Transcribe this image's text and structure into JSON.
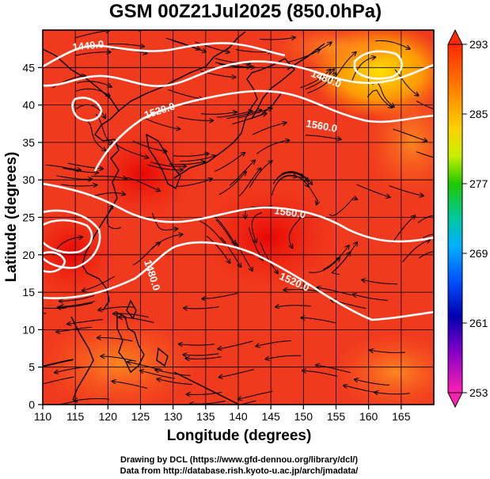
{
  "title": "GSM 00Z21Jul2025 (850.0hPa)",
  "x_axis": {
    "label": "Longitude (degrees)",
    "range": [
      110,
      170
    ],
    "ticks": [
      "110",
      "115",
      "120",
      "125",
      "130",
      "135",
      "140",
      "145",
      "150",
      "155",
      "160",
      "165"
    ]
  },
  "y_axis": {
    "label": "Latitude  (degrees)",
    "range": [
      0,
      50
    ],
    "ticks": [
      "0",
      "5",
      "10",
      "15",
      "20",
      "25",
      "30",
      "35",
      "40",
      "45"
    ]
  },
  "colorbar": {
    "ticks": [
      "293",
      "285",
      "277",
      "269",
      "261",
      "253"
    ],
    "range": [
      253,
      293
    ],
    "colors": [
      "#ff0000",
      "#ff6a00",
      "#ffb400",
      "#ffff00",
      "#00cc00",
      "#00c8c8",
      "#0070ff",
      "#0000a0",
      "#a000c8",
      "#ff1493"
    ]
  },
  "contour_labels": [
    "1440.0",
    "1480.0",
    "1520.0",
    "1560.0",
    "1560.0",
    "1520.0",
    "1480.0"
  ],
  "credits": {
    "line1": "Drawing by DCL (https://www.gfd-dennou.org/library/dcl/)",
    "line2": "Data from http://database.rish.kyoto-u.ac.jp/arch/jmadata/"
  },
  "colors": {
    "background_field": "#f03a1e",
    "streamlines": "#000000",
    "contours": "#ffffff",
    "coastline": "#000000"
  }
}
